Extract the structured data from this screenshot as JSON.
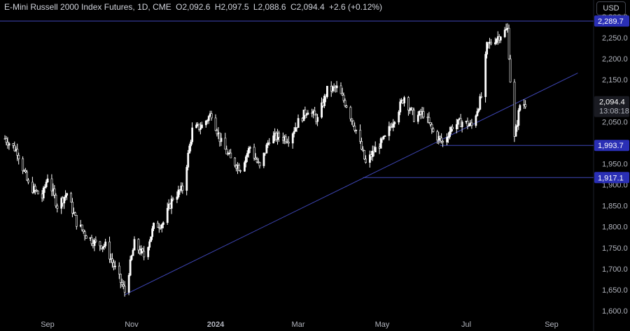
{
  "header": {
    "symbol": "E-Mini Russell 2000 Index Futures, 1D, CME",
    "open": "O2,092.6",
    "high": "H2,097.5",
    "low": "L2,088.6",
    "close": "C2,094.4",
    "change": "+2.6 (+0.12%)"
  },
  "currency_button": "USD",
  "colors": {
    "background": "#000000",
    "candle": "#ffffff",
    "line": "#3f47b8",
    "label_bg": "#2a2fb5",
    "text": "#b2b5be"
  },
  "chart_data": {
    "type": "candlestick",
    "ylim": [
      1580,
      2340
    ],
    "y_ticks": [
      "1,600.0",
      "1,650.0",
      "1,700.0",
      "1,750.0",
      "1,800.0",
      "1,850.0",
      "1,900.0",
      "1,950.0",
      "2,000.0",
      "2,050.0",
      "2,100.0",
      "2,150.0",
      "2,200.0",
      "2,250.0",
      "2,300.0"
    ],
    "x_ticks": [
      "Sep",
      "Nov",
      "2024",
      "Mar",
      "May",
      "Jul",
      "Sep"
    ],
    "levels": [
      {
        "label": "2,289.7",
        "value": 2289.7
      },
      {
        "label": "1,993.7",
        "value": 1993.7
      },
      {
        "label": "1,917.1",
        "value": 1917.1
      }
    ],
    "trendline": {
      "from": {
        "date": "2023-10-27",
        "value": 1638
      },
      "to": {
        "date": "2024-09-20",
        "value": 2166
      }
    },
    "last_price": {
      "label": "2,094.4",
      "value": 2094.4,
      "countdown": "13:08:18"
    },
    "closes_path": [
      [
        "2023-08-01",
        2010
      ],
      [
        "2023-08-10",
        1980
      ],
      [
        "2023-08-18",
        1900
      ],
      [
        "2023-08-28",
        1870
      ],
      [
        "2023-09-01",
        1920
      ],
      [
        "2023-09-08",
        1850
      ],
      [
        "2023-09-15",
        1880
      ],
      [
        "2023-09-22",
        1810
      ],
      [
        "2023-09-29",
        1780
      ],
      [
        "2023-10-06",
        1760
      ],
      [
        "2023-10-13",
        1755
      ],
      [
        "2023-10-20",
        1700
      ],
      [
        "2023-10-27",
        1645
      ],
      [
        "2023-11-03",
        1760
      ],
      [
        "2023-11-10",
        1730
      ],
      [
        "2023-11-17",
        1800
      ],
      [
        "2023-11-24",
        1810
      ],
      [
        "2023-12-01",
        1870
      ],
      [
        "2023-12-08",
        1890
      ],
      [
        "2023-12-15",
        2030
      ],
      [
        "2023-12-22",
        2040
      ],
      [
        "2023-12-29",
        2070
      ],
      [
        "2024-01-05",
        2000
      ],
      [
        "2024-01-12",
        1960
      ],
      [
        "2024-01-19",
        1940
      ],
      [
        "2024-01-26",
        1990
      ],
      [
        "2024-02-02",
        1940
      ],
      [
        "2024-02-09",
        2010
      ],
      [
        "2024-02-16",
        2015
      ],
      [
        "2024-02-23",
        2010
      ],
      [
        "2024-03-01",
        2050
      ],
      [
        "2024-03-08",
        2080
      ],
      [
        "2024-03-15",
        2055
      ],
      [
        "2024-03-22",
        2125
      ],
      [
        "2024-03-29",
        2130
      ],
      [
        "2024-04-05",
        2090
      ],
      [
        "2024-04-12",
        2030
      ],
      [
        "2024-04-19",
        1950
      ],
      [
        "2024-04-26",
        1985
      ],
      [
        "2024-05-03",
        2010
      ],
      [
        "2024-05-10",
        2060
      ],
      [
        "2024-05-17",
        2110
      ],
      [
        "2024-05-24",
        2060
      ],
      [
        "2024-05-31",
        2070
      ],
      [
        "2024-06-07",
        2025
      ],
      [
        "2024-06-14",
        2000
      ],
      [
        "2024-06-21",
        2040
      ],
      [
        "2024-06-28",
        2050
      ],
      [
        "2024-07-05",
        2040
      ],
      [
        "2024-07-12",
        2110
      ],
      [
        "2024-07-16",
        2230
      ],
      [
        "2024-07-23",
        2250
      ],
      [
        "2024-07-31",
        2270
      ],
      [
        "2024-08-02",
        2150
      ],
      [
        "2024-08-05",
        2010
      ],
      [
        "2024-08-09",
        2090
      ],
      [
        "2024-08-14",
        2094.4
      ]
    ]
  }
}
